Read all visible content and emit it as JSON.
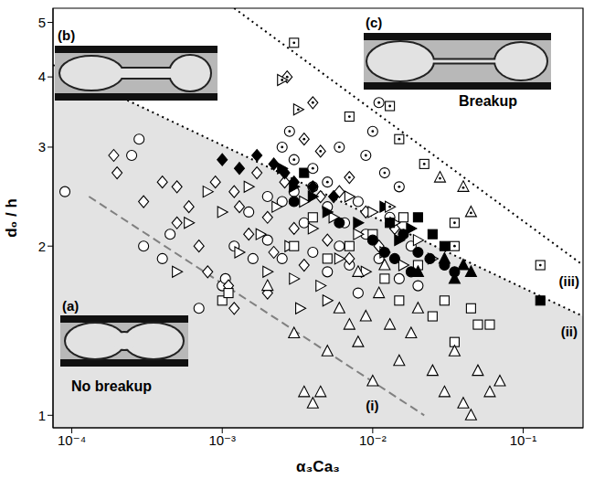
{
  "chart_data": {
    "type": "scatter",
    "xlabel": "α₃Ca₃",
    "ylabel": "d₀ / h",
    "log": true,
    "grid": false,
    "xlim": [
      7.5e-05,
      0.25
    ],
    "ylim": [
      0.95,
      5.3
    ],
    "xticks": [
      {
        "value": 0.0001,
        "label": "10⁻⁴"
      },
      {
        "value": 0.001,
        "label": "10⁻³"
      },
      {
        "value": 0.01,
        "label": "10⁻²"
      },
      {
        "value": 0.1,
        "label": "10⁻¹"
      }
    ],
    "yticks": [
      1,
      2,
      3,
      4,
      5
    ],
    "annotations": [
      "(a)",
      "(b)",
      "(c)",
      "No breakup",
      "Breakup"
    ],
    "series": [
      {
        "type": "area",
        "color": "#e3e3e3",
        "x": [
          7.5e-05,
          0.25
        ],
        "values": [
          4.2,
          1.5
        ]
      },
      {
        "name": "(i)",
        "type": "line",
        "line_style": "dashed",
        "color": "#808080",
        "x": [
          0.00013,
          0.022
        ],
        "values": [
          2.45,
          1.0
        ]
      },
      {
        "name": "(ii)",
        "type": "line",
        "line_style": "dotted",
        "color": "#000000",
        "x": [
          7.5e-05,
          0.25
        ],
        "values": [
          4.2,
          1.5
        ]
      },
      {
        "name": "(iii)",
        "type": "line",
        "line_style": "dotted",
        "color": "#000000",
        "x": [
          0.0012,
          0.25
        ],
        "values": [
          5.3,
          1.85
        ]
      },
      {
        "type": "scatter",
        "marker": "open_circle",
        "color": "#000000",
        "x": [
          9e-05,
          0.00028,
          0.00025,
          0.0003,
          0.0004,
          0.00045,
          0.0007,
          0.001,
          0.00105,
          0.0012,
          0.0015,
          0.0016,
          0.002,
          0.002,
          0.0025,
          0.0025,
          0.003,
          0.0035,
          0.004,
          0.004,
          0.005,
          0.006,
          0.0065,
          0.007,
          0.008,
          0.009,
          0.011,
          0.013,
          0.015,
          0.018,
          0.02,
          0.008,
          0.005
        ],
        "values": [
          2.5,
          3.1,
          2.9,
          2.0,
          1.9,
          2.1,
          1.55,
          1.7,
          1.75,
          2.0,
          2.3,
          1.9,
          2.45,
          2.05,
          2.4,
          1.9,
          2.5,
          2.2,
          2.55,
          1.95,
          2.35,
          2.0,
          2.2,
          1.85,
          2.4,
          2.1,
          1.9,
          2.25,
          1.75,
          2.0,
          1.7,
          1.65,
          1.8
        ]
      },
      {
        "type": "scatter",
        "marker": "open_diamond",
        "color": "#000000",
        "x": [
          0.00019,
          0.0002,
          0.0003,
          0.0004,
          0.0005,
          0.0005,
          0.0006,
          0.0007,
          0.0008,
          0.0011,
          0.0009,
          0.0012,
          0.0013,
          0.0015,
          0.0017,
          0.002,
          0.0022,
          0.0026,
          0.003,
          0.0035,
          0.0045,
          0.005,
          0.006,
          0.007,
          0.009,
          0.011,
          0.014,
          0.0012,
          0.002
        ],
        "values": [
          2.9,
          2.7,
          2.4,
          2.6,
          2.55,
          2.2,
          2.35,
          2.0,
          1.8,
          1.7,
          2.6,
          2.5,
          2.35,
          2.1,
          2.7,
          2.25,
          1.95,
          2.6,
          2.15,
          1.85,
          2.45,
          2.05,
          2.5,
          1.9,
          2.3,
          2.0,
          2.15,
          1.55,
          1.65
        ]
      },
      {
        "type": "scatter",
        "marker": "open_triangle-right",
        "color": "#000000",
        "x": [
          0.0005,
          0.0006,
          0.0008,
          0.001,
          0.0013,
          0.0015,
          0.0018,
          0.002,
          0.0023,
          0.0028,
          0.003,
          0.0035,
          0.004,
          0.0045,
          0.0055,
          0.006,
          0.007,
          0.008,
          0.009,
          0.01,
          0.012,
          0.014,
          0.016,
          0.02,
          0.025,
          0.005,
          0.0033
        ],
        "values": [
          1.8,
          2.2,
          2.5,
          2.3,
          1.95,
          2.55,
          2.1,
          1.8,
          2.35,
          2.0,
          1.75,
          2.4,
          2.15,
          1.7,
          2.25,
          1.9,
          2.45,
          2.1,
          1.8,
          2.3,
          1.95,
          2.2,
          1.85,
          2.05,
          1.9,
          1.6,
          1.55
        ]
      },
      {
        "type": "scatter",
        "marker": "open_square",
        "color": "#000000",
        "x": [
          0.001,
          0.0011,
          0.003,
          0.004,
          0.005,
          0.007,
          0.01,
          0.012,
          0.016,
          0.02,
          0.03,
          0.045,
          0.05,
          0.06,
          0.035,
          0.025,
          0.015
        ],
        "values": [
          1.6,
          1.65,
          2.0,
          2.25,
          1.9,
          2.0,
          2.1,
          1.75,
          2.25,
          1.85,
          1.6,
          1.55,
          1.45,
          1.45,
          1.35,
          1.5,
          1.6
        ]
      },
      {
        "type": "scatter",
        "marker": "open_triangle-up",
        "color": "#000000",
        "x": [
          0.002,
          0.003,
          0.0035,
          0.004,
          0.0045,
          0.005,
          0.006,
          0.007,
          0.008,
          0.009,
          0.01,
          0.011,
          0.013,
          0.015,
          0.018,
          0.02,
          0.025,
          0.03,
          0.035,
          0.04,
          0.045,
          0.05,
          0.06,
          0.07,
          0.008,
          0.012
        ],
        "values": [
          1.7,
          1.4,
          1.1,
          1.05,
          1.1,
          1.3,
          1.55,
          1.45,
          1.35,
          1.5,
          1.15,
          1.65,
          1.45,
          1.25,
          1.4,
          1.55,
          1.2,
          1.1,
          1.3,
          1.05,
          1.0,
          1.2,
          1.1,
          1.15,
          1.8,
          1.85
        ]
      },
      {
        "type": "scatter",
        "marker": "filled_diamond",
        "color": "#000000",
        "x": [
          0.001,
          0.0013,
          0.0017,
          0.0022,
          0.0026,
          0.003,
          0.004,
          0.0055
        ],
        "values": [
          2.85,
          2.75,
          2.9,
          2.8,
          2.7,
          2.6,
          2.55,
          2.45
        ]
      },
      {
        "type": "scatter",
        "marker": "filled_triangle-right",
        "color": "#000000",
        "x": [
          0.0025,
          0.003,
          0.004,
          0.005,
          0.008,
          0.012,
          0.018,
          0.015
        ],
        "values": [
          2.75,
          2.55,
          2.45,
          2.3,
          2.2,
          2.35,
          2.15,
          2.05
        ]
      },
      {
        "type": "scatter",
        "marker": "filled_circle",
        "color": "#000000",
        "x": [
          0.003,
          0.006,
          0.01,
          0.012,
          0.014,
          0.016,
          0.02,
          0.024,
          0.03,
          0.035,
          0.018
        ],
        "values": [
          2.4,
          2.2,
          2.05,
          1.95,
          1.9,
          2.1,
          1.95,
          1.9,
          1.85,
          1.8,
          1.8
        ]
      },
      {
        "type": "scatter",
        "marker": "filled_square",
        "color": "#000000",
        "x": [
          0.0035,
          0.025,
          0.03,
          0.013,
          0.13,
          0.02
        ],
        "values": [
          2.7,
          2.1,
          2.0,
          2.2,
          1.6,
          2.25
        ]
      },
      {
        "type": "scatter",
        "marker": "filled_triangle-up",
        "color": "#000000",
        "x": [
          0.02,
          0.035,
          0.04,
          0.045,
          0.03
        ],
        "values": [
          1.8,
          1.75,
          1.85,
          1.8,
          1.9
        ]
      },
      {
        "type": "scatter",
        "marker": "dotted_circle",
        "color": "#000000",
        "x": [
          0.0025,
          0.003,
          0.004,
          0.005,
          0.006,
          0.009,
          0.01,
          0.012,
          0.015,
          0.011,
          0.0028
        ],
        "values": [
          3.0,
          2.85,
          2.75,
          2.6,
          3.0,
          2.9,
          3.2,
          2.7,
          2.55,
          3.6,
          3.2
        ]
      },
      {
        "type": "scatter",
        "marker": "dotted_diamond",
        "color": "#000000",
        "x": [
          0.0027,
          0.004,
          0.0045,
          0.007,
          0.0035
        ],
        "values": [
          4.0,
          3.6,
          2.95,
          2.65,
          3.1
        ]
      },
      {
        "type": "scatter",
        "marker": "dotted_triangle-right",
        "color": "#000000",
        "x": [
          0.0025,
          0.0032,
          0.013
        ],
        "values": [
          3.95,
          3.5,
          2.35
        ]
      },
      {
        "type": "scatter",
        "marker": "dotted_square",
        "color": "#000000",
        "x": [
          0.003,
          0.013,
          0.015,
          0.022,
          0.035,
          0.035,
          0.13,
          0.007
        ],
        "values": [
          4.6,
          3.55,
          3.1,
          2.8,
          2.2,
          2.0,
          1.85,
          3.4
        ]
      },
      {
        "type": "scatter",
        "marker": "dotted_triangle-up",
        "color": "#000000",
        "x": [
          0.04,
          0.045,
          0.028
        ],
        "values": [
          2.55,
          2.3,
          2.65
        ]
      }
    ]
  }
}
